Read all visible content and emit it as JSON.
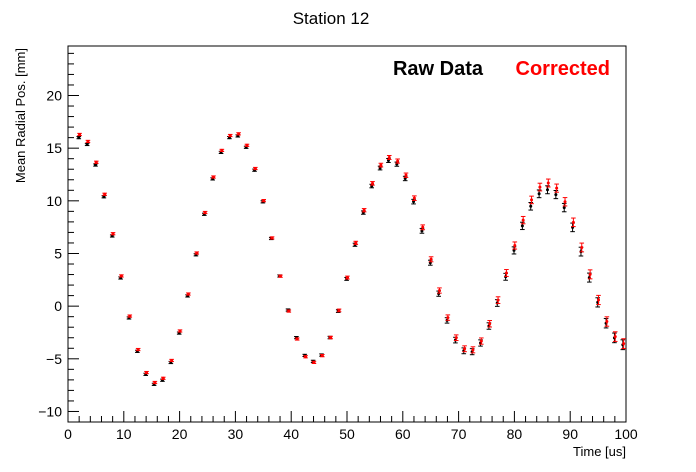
{
  "chart_data": {
    "type": "scatter",
    "title": "Station 12",
    "xlabel": "Time [us]",
    "ylabel": "Mean Radial Pos. [mm]",
    "xlim": [
      0,
      100
    ],
    "ylim": [
      -11,
      24.7
    ],
    "x_ticks": [
      0,
      10,
      20,
      30,
      40,
      50,
      60,
      70,
      80,
      90,
      100
    ],
    "y_ticks": [
      -10,
      -5,
      0,
      5,
      10,
      15,
      20
    ],
    "grid": false,
    "legend_placement": "top-right",
    "legend": [
      {
        "label": "Raw Data",
        "color": "#000000"
      },
      {
        "label": "Corrected",
        "color": "#ff0000"
      }
    ],
    "sampling": {
      "period_us": 1.5,
      "start_us": 2.0,
      "end_us": 99.5
    },
    "series": [
      {
        "name": "Raw Data",
        "color": "#000000",
        "oscillation": {
          "center_mm": [
            [
              2,
              3.5
            ],
            [
              20,
              4.8
            ],
            [
              40,
              5.3
            ],
            [
              60,
              4.3
            ],
            [
              80,
              3.6
            ],
            [
              100,
              3.5
            ]
          ],
          "amplitude_mm": [
            [
              2,
              12.5
            ],
            [
              20,
              11.8
            ],
            [
              40,
              10.6
            ],
            [
              60,
              9.3
            ],
            [
              80,
              7.6
            ],
            [
              100,
              7.2
            ]
          ],
          "beat_period_us": 28.0,
          "beat_phase_us": 2.0
        }
      },
      {
        "name": "Corrected",
        "color": "#ff0000",
        "oscillation": {
          "center_mm": [
            [
              2,
              3.7
            ],
            [
              20,
              5.0
            ],
            [
              40,
              5.3
            ],
            [
              60,
              4.6
            ],
            [
              80,
              4.0
            ],
            [
              100,
              3.8
            ]
          ],
          "amplitude_mm": [
            [
              2,
              12.6
            ],
            [
              20,
              11.8
            ],
            [
              40,
              10.8
            ],
            [
              60,
              9.3
            ],
            [
              80,
              7.9
            ],
            [
              100,
              7.4
            ]
          ],
          "beat_period_us": 28.0,
          "beat_phase_us": 2.0
        }
      }
    ],
    "colors": {
      "axis": "#000000",
      "raw": "#000000",
      "corrected": "#ff0000",
      "background": "#ffffff"
    }
  }
}
